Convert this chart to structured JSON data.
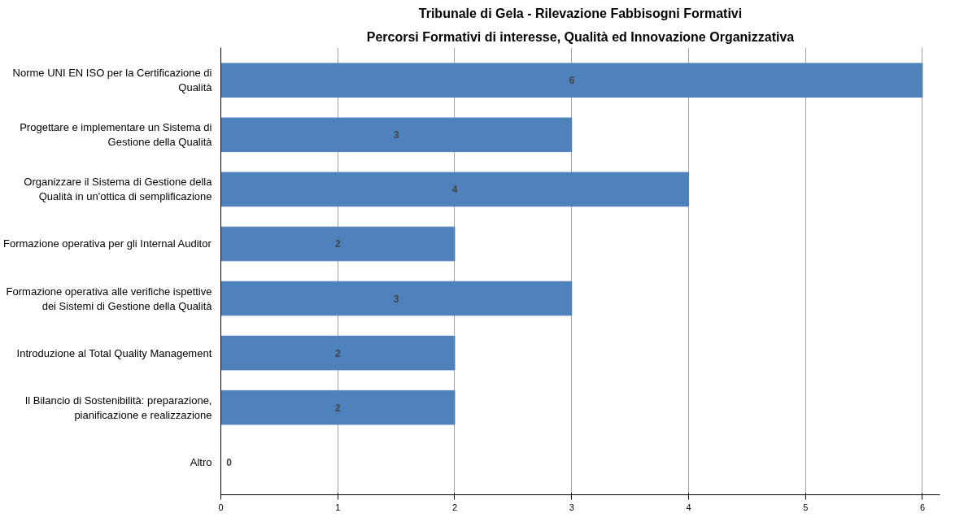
{
  "chart_data": {
    "type": "bar",
    "orientation": "horizontal",
    "title": "Tribunale di Gela - Rilevazione Fabbisogni Formativi",
    "subtitle": "Percorsi Formativi di interesse, Qualità ed Innovazione Organizzativa",
    "categories": [
      "Norme UNI EN ISO per la Certificazione di Qualità",
      "Progettare e implementare un Sistema di Gestione della Qualità",
      "Organizzare il Sistema di Gestione della Qualità in un'ottica di semplificazione",
      "Formazione operativa per gli Internal Auditor",
      "Formazione operativa alle verifiche ispettive dei Sistemi di Gestione della Qualità",
      "Introduzione al Total Quality Management",
      "Il Bilancio di Sostenibilità: preparazione, pianificazione e realizzazione",
      "Altro"
    ],
    "values": [
      6,
      3,
      4,
      2,
      3,
      2,
      2,
      0
    ],
    "color": "#4f81bd",
    "xlim": [
      0,
      6.15
    ],
    "xticks": [
      0,
      1,
      2,
      3,
      4,
      5,
      6
    ],
    "grid": "x",
    "data_labels": true
  }
}
